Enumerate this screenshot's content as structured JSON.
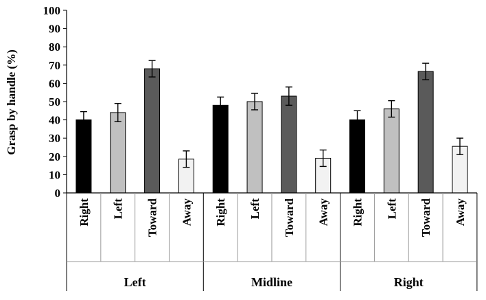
{
  "chart_data": {
    "type": "bar",
    "ylabel": "Grasp by handle  (%)",
    "ylim": [
      0,
      100
    ],
    "yticks": [
      0,
      10,
      20,
      30,
      40,
      50,
      60,
      70,
      80,
      90,
      100
    ],
    "grid": false,
    "groups": [
      {
        "label": "Left",
        "bars": [
          {
            "label": "Right",
            "value": 40,
            "error": 4.5
          },
          {
            "label": "Left",
            "value": 44,
            "error": 5
          },
          {
            "label": "Toward",
            "value": 68,
            "error": 4.5
          },
          {
            "label": "Away",
            "value": 18.5,
            "error": 4.5
          }
        ]
      },
      {
        "label": "Midline",
        "bars": [
          {
            "label": "Right",
            "value": 48,
            "error": 4.5
          },
          {
            "label": "Left",
            "value": 50,
            "error": 4.5
          },
          {
            "label": "Toward",
            "value": 53,
            "error": 5
          },
          {
            "label": "Away",
            "value": 19,
            "error": 4.5
          }
        ]
      },
      {
        "label": "Right",
        "bars": [
          {
            "label": "Right",
            "value": 40,
            "error": 5
          },
          {
            "label": "Left",
            "value": 46,
            "error": 4.5
          },
          {
            "label": "Toward",
            "value": 66.5,
            "error": 4.5
          },
          {
            "label": "Away",
            "value": 25.5,
            "error": 4.5
          }
        ]
      }
    ],
    "colors": {
      "Right": "#000000",
      "Left": "#c0c0c0",
      "Toward": "#5a5a5a",
      "Away": "#f2f2f2"
    }
  }
}
